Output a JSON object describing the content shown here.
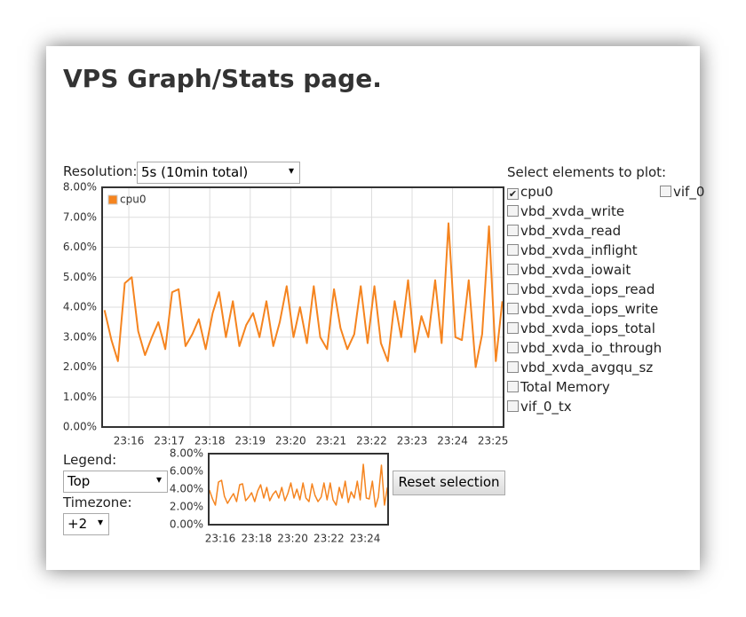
{
  "header": {
    "title": "VPS Graph/Stats page."
  },
  "controls": {
    "resolution_label": "Resolution:",
    "resolution_value": "5s (10min total)",
    "legend_label": "Legend:",
    "legend_value": "Top",
    "timezone_label": "Timezone:",
    "timezone_value": "+2",
    "reset_button": "Reset selection"
  },
  "elements": {
    "title": "Select elements to plot:",
    "items": [
      {
        "label": "cpu0",
        "checked": true
      },
      {
        "label": "vbd_xvda_write",
        "checked": false
      },
      {
        "label": "vbd_xvda_read",
        "checked": false
      },
      {
        "label": "vbd_xvda_inflight",
        "checked": false
      },
      {
        "label": "vbd_xvda_iowait",
        "checked": false
      },
      {
        "label": "vbd_xvda_iops_read",
        "checked": false
      },
      {
        "label": "vbd_xvda_iops_write",
        "checked": false
      },
      {
        "label": "vbd_xvda_iops_total",
        "checked": false
      },
      {
        "label": "vbd_xvda_io_through",
        "checked": false
      },
      {
        "label": "vbd_xvda_avgqu_sz",
        "checked": false
      },
      {
        "label": "Total Memory",
        "checked": false
      },
      {
        "label": "vif_0_tx",
        "checked": false
      }
    ],
    "second_column": [
      {
        "label": "vif_0",
        "checked": false
      }
    ]
  },
  "chart_data": [
    {
      "type": "line",
      "legend": "top-left",
      "grid": true,
      "xlim": [
        1395.34,
        1405.26
      ],
      "ylim": [
        0,
        8
      ],
      "xticks": [
        {
          "value": 1396,
          "label": "23:16"
        },
        {
          "value": 1397,
          "label": "23:17"
        },
        {
          "value": 1398,
          "label": "23:18"
        },
        {
          "value": 1399,
          "label": "23:19"
        },
        {
          "value": 1400,
          "label": "23:20"
        },
        {
          "value": 1401,
          "label": "23:21"
        },
        {
          "value": 1402,
          "label": "23:22"
        },
        {
          "value": 1403,
          "label": "23:23"
        },
        {
          "value": 1404,
          "label": "23:24"
        },
        {
          "value": 1405,
          "label": "23:25"
        }
      ],
      "yticks": [
        {
          "value": 0,
          "label": "0.00%"
        },
        {
          "value": 1,
          "label": "1.00%"
        },
        {
          "value": 2,
          "label": "2.00%"
        },
        {
          "value": 3,
          "label": "3.00%"
        },
        {
          "value": 4,
          "label": "4.00%"
        },
        {
          "value": 5,
          "label": "5.00%"
        },
        {
          "value": 6,
          "label": "6.00%"
        },
        {
          "value": 7,
          "label": "7.00%"
        },
        {
          "value": 8,
          "label": "8.00%"
        }
      ],
      "series": [
        {
          "name": "cpu0",
          "color": "#f5841f",
          "x": [
            1395.4,
            1395.57,
            1395.73,
            1395.9,
            1396.07,
            1396.23,
            1396.4,
            1396.57,
            1396.73,
            1396.9,
            1397.07,
            1397.23,
            1397.4,
            1397.57,
            1397.73,
            1397.9,
            1398.07,
            1398.23,
            1398.4,
            1398.57,
            1398.73,
            1398.9,
            1399.07,
            1399.23,
            1399.4,
            1399.57,
            1399.73,
            1399.9,
            1400.07,
            1400.23,
            1400.4,
            1400.57,
            1400.73,
            1400.9,
            1401.07,
            1401.23,
            1401.4,
            1401.57,
            1401.73,
            1401.9,
            1402.07,
            1402.23,
            1402.4,
            1402.57,
            1402.73,
            1402.9,
            1403.07,
            1403.23,
            1403.4,
            1403.57,
            1403.73,
            1403.9,
            1404.07,
            1404.23,
            1404.4,
            1404.57,
            1404.73,
            1404.9,
            1405.07,
            1405.23
          ],
          "values": [
            3.9,
            2.9,
            2.2,
            4.8,
            5.0,
            3.2,
            2.4,
            3.0,
            3.5,
            2.6,
            4.5,
            4.6,
            2.7,
            3.1,
            3.6,
            2.6,
            3.8,
            4.5,
            3.0,
            4.2,
            2.7,
            3.4,
            3.8,
            3.0,
            4.2,
            2.7,
            3.5,
            4.7,
            3.0,
            4.0,
            2.8,
            4.7,
            3.0,
            2.6,
            4.6,
            3.3,
            2.6,
            3.1,
            4.7,
            2.8,
            4.7,
            2.8,
            2.2,
            4.2,
            3.0,
            4.9,
            2.5,
            3.7,
            3.0,
            4.9,
            2.8,
            6.8,
            3.0,
            2.9,
            4.9,
            2.0,
            3.1,
            6.7,
            2.2,
            4.2
          ]
        }
      ]
    },
    {
      "type": "line",
      "grid": false,
      "xlim": [
        1395.36,
        1405.27
      ],
      "ylim": [
        0,
        8
      ],
      "xticks": [
        {
          "value": 1396,
          "label": "23:16"
        },
        {
          "value": 1398,
          "label": "23:18"
        },
        {
          "value": 1400,
          "label": "23:20"
        },
        {
          "value": 1402,
          "label": "23:22"
        },
        {
          "value": 1404,
          "label": "23:24"
        }
      ],
      "yticks": [
        {
          "value": 0,
          "label": "0.00%"
        },
        {
          "value": 2,
          "label": "2.00%"
        },
        {
          "value": 4,
          "label": "4.00%"
        },
        {
          "value": 6,
          "label": "6.00%"
        },
        {
          "value": 8,
          "label": "8.00%"
        }
      ]
    }
  ]
}
